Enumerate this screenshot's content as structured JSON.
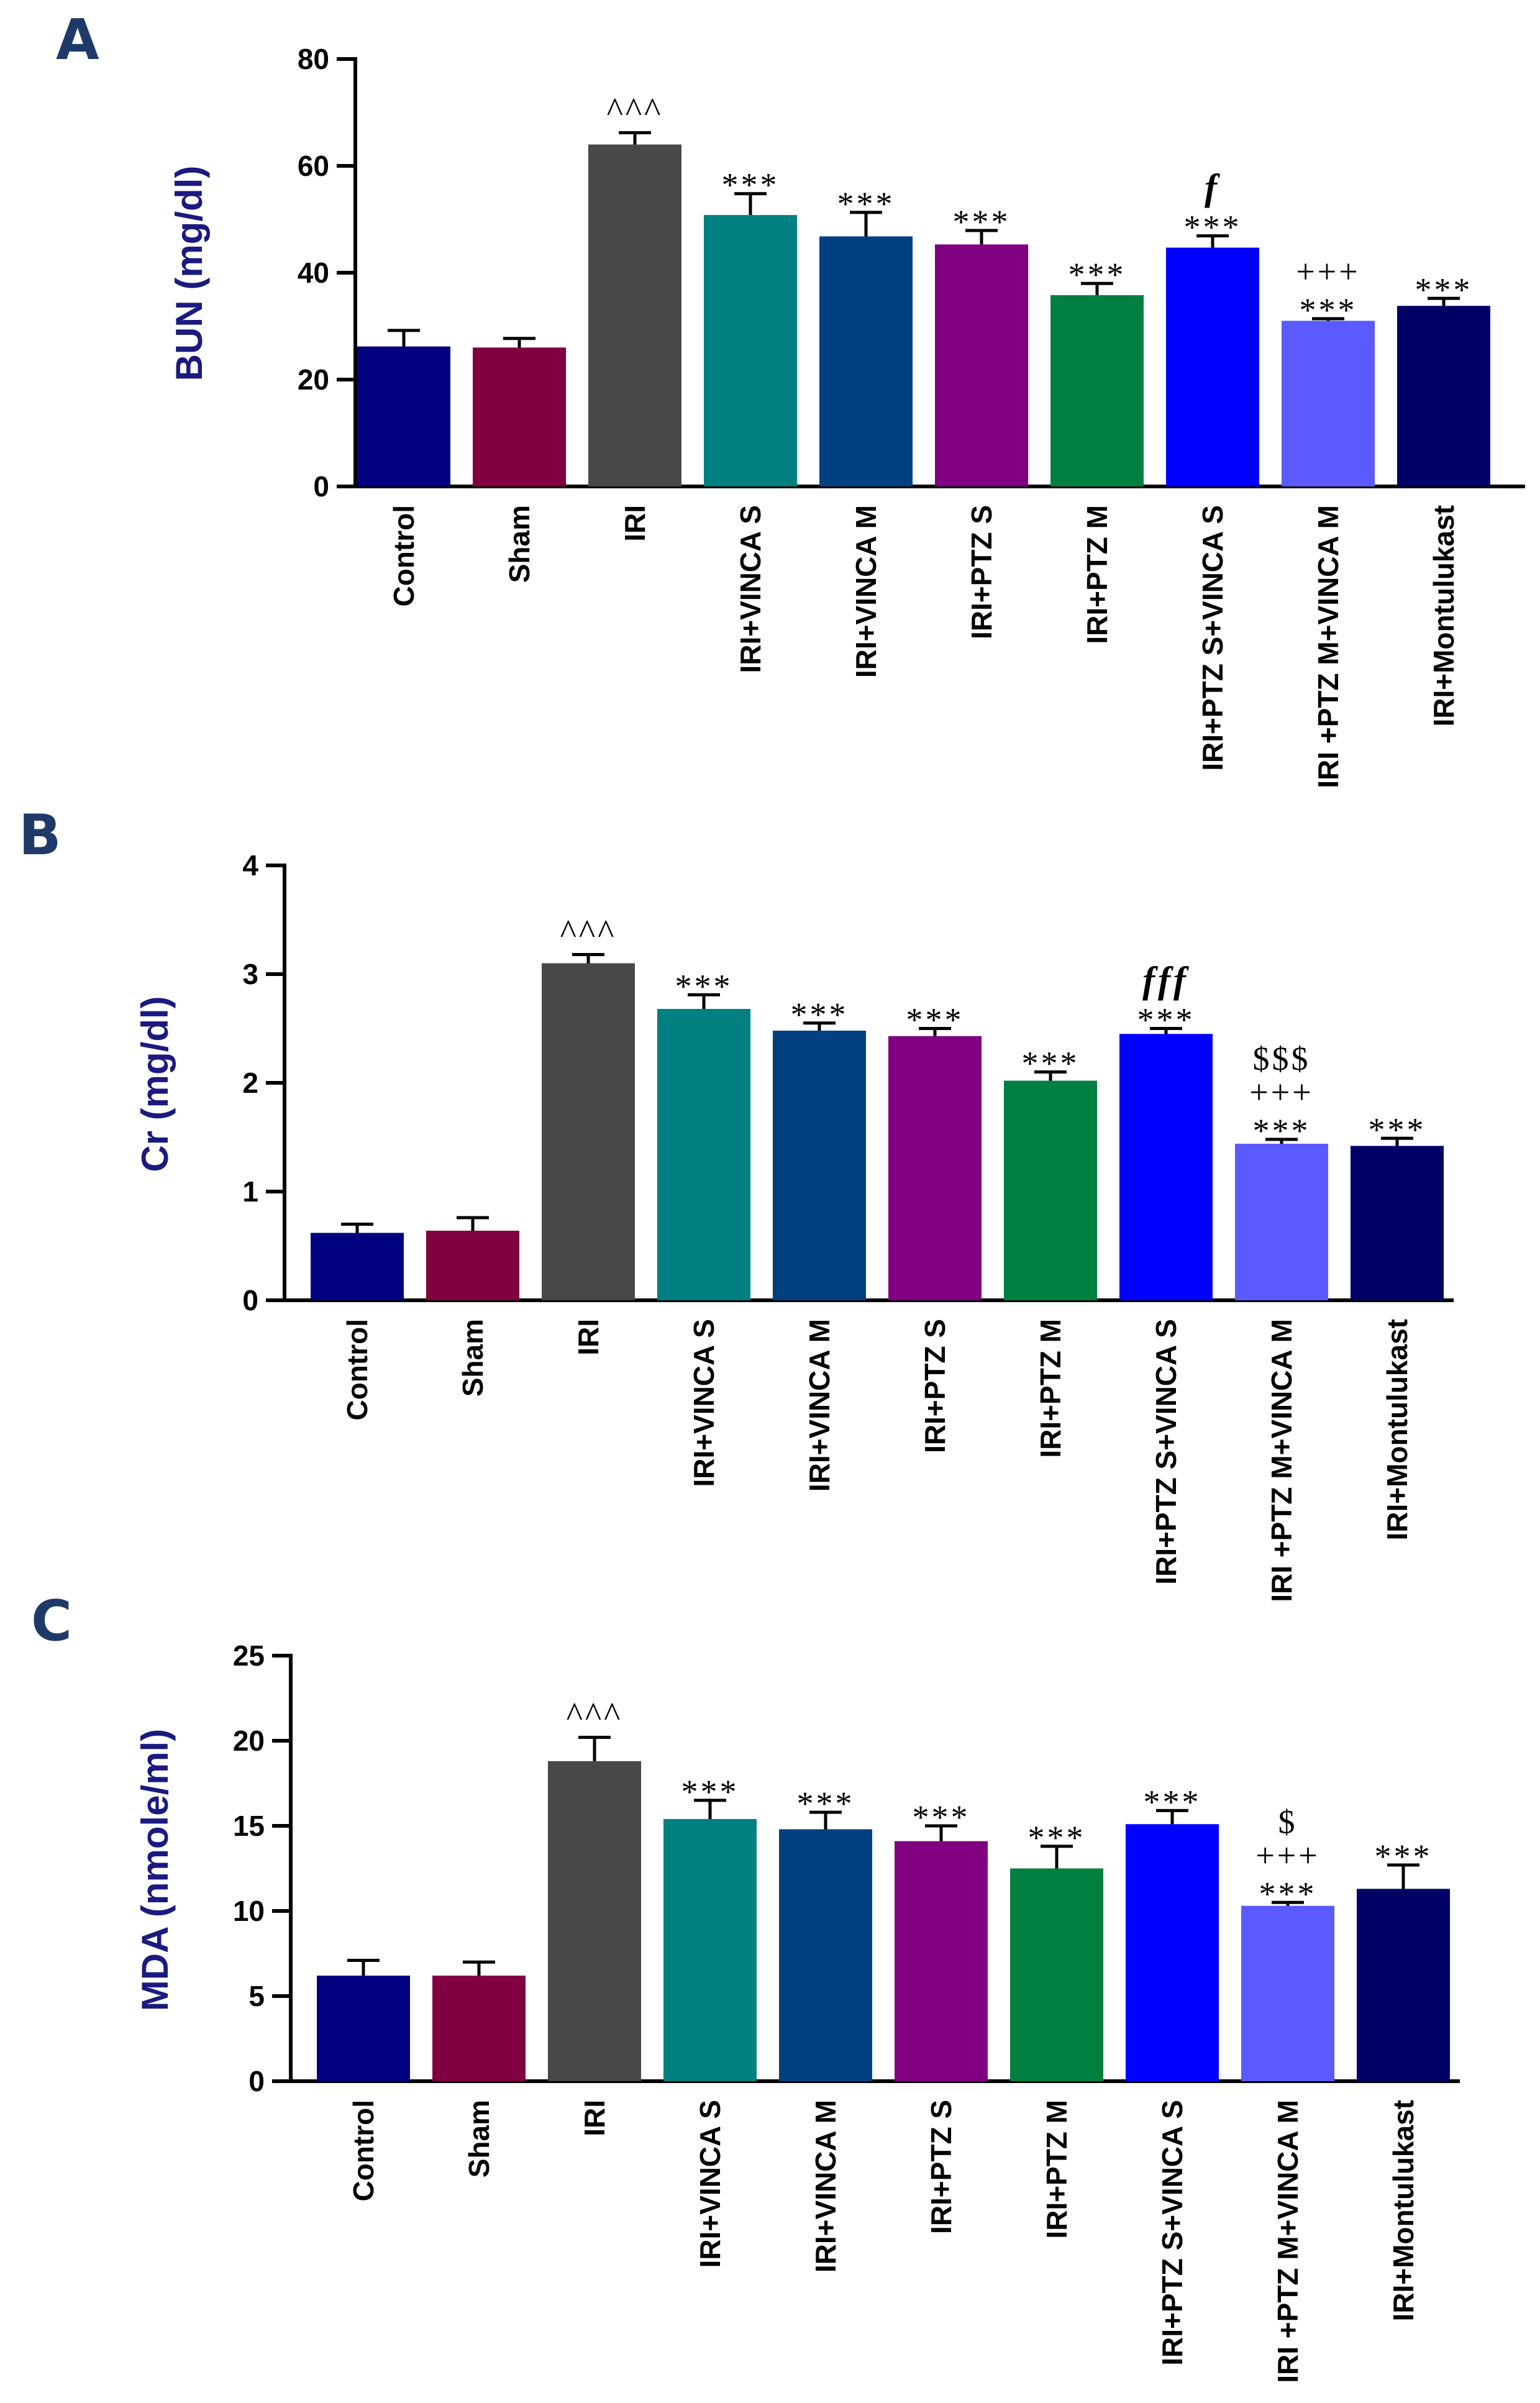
{
  "colors": [
    "#000080",
    "#800040",
    "#484848",
    "#008080",
    "#004080",
    "#800080",
    "#008040",
    "#0000ff",
    "#5a5aff",
    "#000066"
  ],
  "chart_data": [
    {
      "type": "bar",
      "panel": "A",
      "ylabel": "BUN (mg/dl)",
      "ylim": [
        0,
        80
      ],
      "yticks": [
        "0",
        "20",
        "40",
        "60",
        "80"
      ],
      "categories": [
        "Control",
        "Sham",
        "IRI",
        "IRI+VINCA S",
        "IRI+VINCA M",
        "IRI+PTZ S",
        "IRI+PTZ M",
        "IRI+PTZ S+VINCA S",
        "IRI +PTZ M+VINCA M",
        "IRI+Montulukast"
      ],
      "values": [
        26.2,
        26.0,
        64.0,
        50.8,
        46.8,
        45.3,
        35.8,
        44.7,
        31.0,
        33.8
      ],
      "errors": [
        3.0,
        1.7,
        2.2,
        4.0,
        4.5,
        2.6,
        2.2,
        2.2,
        0.4,
        1.4
      ],
      "annotations": [
        [],
        [],
        [
          "^^^"
        ],
        [
          "***"
        ],
        [
          "***"
        ],
        [
          "***"
        ],
        [
          "***"
        ],
        [
          "f",
          "***"
        ],
        [
          "+++",
          "***"
        ],
        [
          "***"
        ]
      ]
    },
    {
      "type": "bar",
      "panel": "B",
      "ylabel": "Cr (mg/dl)",
      "ylim": [
        0,
        4
      ],
      "yticks": [
        "0",
        "1",
        "2",
        "3",
        "4"
      ],
      "categories": [
        "Control",
        "Sham",
        "IRI",
        "IRI+VINCA S",
        "IRI+VINCA M",
        "IRI+PTZ S",
        "IRI+PTZ M",
        "IRI+PTZ S+VINCA S",
        "IRI +PTZ M+VINCA M",
        "IRI+Montulukast"
      ],
      "values": [
        0.62,
        0.64,
        3.1,
        2.68,
        2.48,
        2.43,
        2.02,
        2.45,
        1.44,
        1.42
      ],
      "errors": [
        0.08,
        0.12,
        0.08,
        0.13,
        0.07,
        0.07,
        0.08,
        0.05,
        0.04,
        0.07
      ],
      "annotations": [
        [],
        [],
        [
          "^^^"
        ],
        [
          "***"
        ],
        [
          "***"
        ],
        [
          "***"
        ],
        [
          "***"
        ],
        [
          "fff",
          "***"
        ],
        [
          "$$$",
          "+++",
          "***"
        ],
        [
          "***"
        ]
      ]
    },
    {
      "type": "bar",
      "panel": "C",
      "ylabel": "MDA (nmole/ml)",
      "ylim": [
        0,
        25
      ],
      "yticks": [
        "0",
        "5",
        "10",
        "15",
        "20",
        "25"
      ],
      "categories": [
        "Control",
        "Sham",
        "IRI",
        "IRI+VINCA S",
        "IRI+VINCA M",
        "IRI+PTZ S",
        "IRI+PTZ M",
        "IRI+PTZ S+VINCA S",
        "IRI +PTZ M+VINCA M",
        "IRI+Montulukast"
      ],
      "values": [
        6.2,
        6.2,
        18.8,
        15.4,
        14.8,
        14.1,
        12.5,
        15.1,
        10.3,
        11.3
      ],
      "errors": [
        0.9,
        0.8,
        1.4,
        1.1,
        1.0,
        0.9,
        1.3,
        0.8,
        0.2,
        1.4
      ],
      "annotations": [
        [],
        [],
        [
          "^^^"
        ],
        [
          "***"
        ],
        [
          "***"
        ],
        [
          "***"
        ],
        [
          "***"
        ],
        [
          "***"
        ],
        [
          "$",
          "+++",
          "***"
        ],
        [
          "***"
        ]
      ]
    }
  ]
}
